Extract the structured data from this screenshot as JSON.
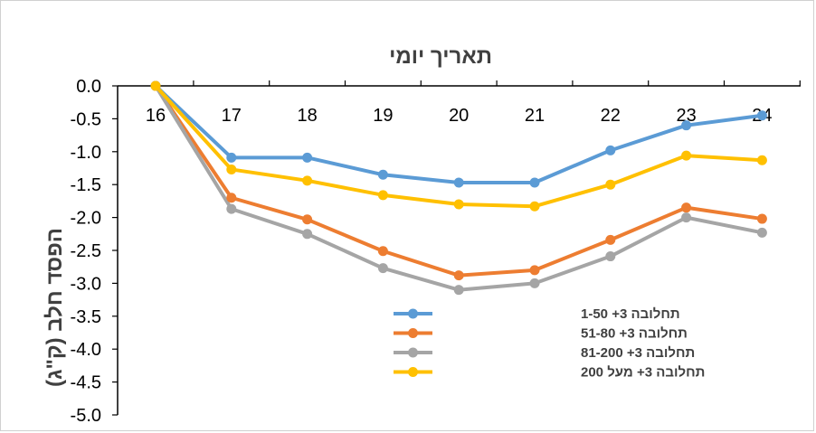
{
  "chart_data": {
    "type": "line",
    "title": "תאריך יומי",
    "xlabel": "תאריך יומי",
    "ylabel": "הפסד חלב (ק\"ג)",
    "x": [
      16,
      17,
      18,
      19,
      20,
      21,
      22,
      23,
      24
    ],
    "ylim": [
      -5.0,
      0.0
    ],
    "yticks": [
      "0.0",
      "-0.5",
      "-1.0",
      "-1.5",
      "-2.0",
      "-2.5",
      "-3.0",
      "-3.5",
      "-4.0",
      "-4.5",
      "-5.0"
    ],
    "xticks": [
      "16",
      "17",
      "18",
      "19",
      "20",
      "21",
      "22",
      "23",
      "24"
    ],
    "grid": false,
    "legend_position": "bottom-center",
    "series": [
      {
        "name": "תחלובה 3+ 1-50",
        "color": "#5b9bd5",
        "values": [
          0.0,
          -1.09,
          -1.09,
          -1.35,
          -1.47,
          -1.47,
          -0.98,
          -0.6,
          -0.45
        ]
      },
      {
        "name": "תחלובה 3+ 51-80",
        "color": "#ed7d31",
        "values": [
          0.0,
          -1.7,
          -2.03,
          -2.51,
          -2.88,
          -2.8,
          -2.34,
          -1.85,
          -2.02
        ]
      },
      {
        "name": "תחלובה 3+  81-200",
        "color": "#a5a5a5",
        "values": [
          0.0,
          -1.87,
          -2.25,
          -2.77,
          -3.1,
          -3.0,
          -2.59,
          -2.0,
          -2.23
        ]
      },
      {
        "name": "תחלובה 3+ מעל 200",
        "color": "#ffc000",
        "values": [
          0.0,
          -1.27,
          -1.44,
          -1.66,
          -1.8,
          -1.83,
          -1.5,
          -1.06,
          -1.13
        ]
      }
    ]
  }
}
